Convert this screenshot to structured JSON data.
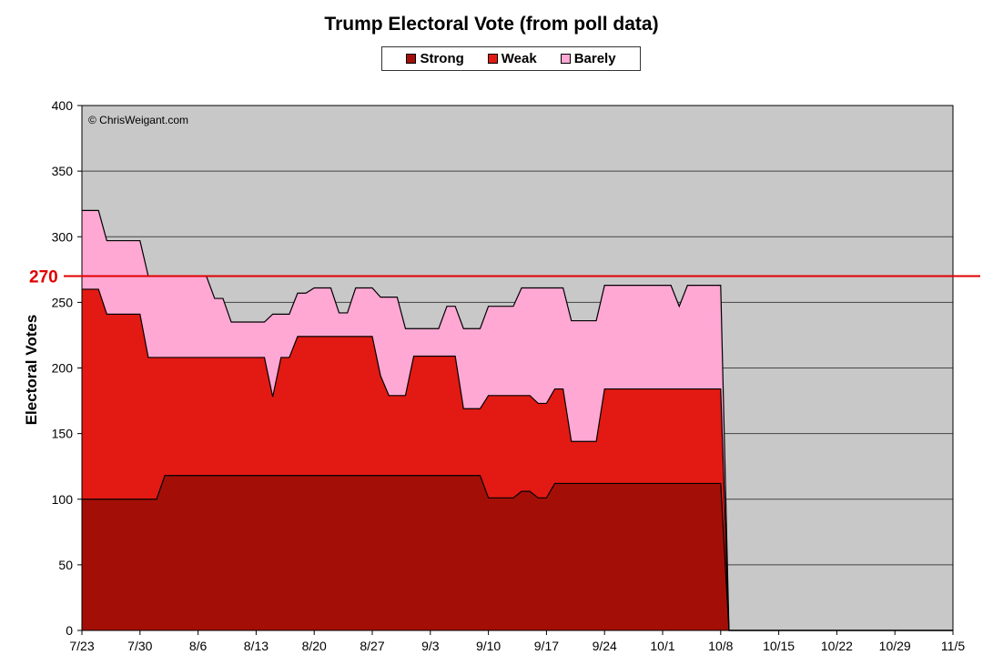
{
  "chart_data": {
    "type": "area",
    "stacked": true,
    "title": "Trump Electoral Vote (from poll data)",
    "xlabel": "",
    "ylabel": "Electoral Votes",
    "ylim": [
      0,
      400
    ],
    "yticks": [
      0,
      50,
      100,
      150,
      200,
      250,
      300,
      350,
      400
    ],
    "x_tick_labels": [
      "7/23",
      "7/30",
      "8/6",
      "8/13",
      "8/20",
      "8/27",
      "9/3",
      "9/10",
      "9/17",
      "9/24",
      "10/1",
      "10/8",
      "10/15",
      "10/22",
      "10/29",
      "11/5"
    ],
    "grid": true,
    "legend_position": "top",
    "annotations": [
      "© ChrisWeigant.com"
    ],
    "reference_line": {
      "label": "270",
      "value": 270,
      "color": "#e00000"
    },
    "x": [
      "7/23",
      "7/24",
      "7/25",
      "7/26",
      "7/27",
      "7/28",
      "7/29",
      "7/30",
      "7/31",
      "8/1",
      "8/2",
      "8/3",
      "8/4",
      "8/5",
      "8/6",
      "8/7",
      "8/8",
      "8/9",
      "8/10",
      "8/11",
      "8/12",
      "8/13",
      "8/14",
      "8/15",
      "8/16",
      "8/17",
      "8/18",
      "8/19",
      "8/20",
      "8/21",
      "8/22",
      "8/23",
      "8/24",
      "8/25",
      "8/26",
      "8/27",
      "8/28",
      "8/29",
      "8/30",
      "8/31",
      "9/1",
      "9/2",
      "9/3",
      "9/4",
      "9/5",
      "9/6",
      "9/7",
      "9/8",
      "9/9",
      "9/10",
      "9/11",
      "9/12",
      "9/13",
      "9/14",
      "9/15",
      "9/16",
      "9/17",
      "9/18",
      "9/19",
      "9/20",
      "9/21",
      "9/22",
      "9/23",
      "9/24",
      "9/25",
      "9/26",
      "9/27",
      "9/28",
      "9/29",
      "9/30",
      "10/1",
      "10/2",
      "10/3",
      "10/4",
      "10/5",
      "10/6",
      "10/7",
      "10/8",
      "10/9",
      "10/10",
      "10/11",
      "10/12",
      "10/13",
      "10/14",
      "10/15",
      "10/16",
      "10/17",
      "10/18",
      "10/19",
      "10/20",
      "10/21",
      "10/22",
      "10/23",
      "10/24",
      "10/25",
      "10/26",
      "10/27",
      "10/28",
      "10/29",
      "10/30",
      "10/31",
      "11/1",
      "11/2",
      "11/3",
      "11/4",
      "11/5"
    ],
    "series": [
      {
        "name": "Strong",
        "color": "#a30f07",
        "values": [
          100,
          100,
          100,
          100,
          100,
          100,
          100,
          100,
          100,
          100,
          118,
          118,
          118,
          118,
          118,
          118,
          118,
          118,
          118,
          118,
          118,
          118,
          118,
          118,
          118,
          118,
          118,
          118,
          118,
          118,
          118,
          118,
          118,
          118,
          118,
          118,
          118,
          118,
          118,
          118,
          118,
          118,
          118,
          118,
          118,
          118,
          118,
          118,
          118,
          101,
          101,
          101,
          101,
          106,
          106,
          101,
          101,
          112,
          112,
          112,
          112,
          112,
          112,
          112,
          112,
          112,
          112,
          112,
          112,
          112,
          112,
          112,
          112,
          112,
          112,
          112,
          112,
          112,
          0,
          0,
          0,
          0,
          0,
          0,
          0,
          0,
          0,
          0,
          0,
          0,
          0,
          0,
          0,
          0,
          0,
          0,
          0,
          0,
          0,
          0,
          0,
          0,
          0,
          0,
          0,
          0
        ]
      },
      {
        "name": "Weak",
        "color": "#e21a13",
        "values": [
          160,
          160,
          160,
          141,
          141,
          141,
          141,
          141,
          108,
          108,
          90,
          90,
          90,
          90,
          90,
          90,
          90,
          90,
          90,
          90,
          90,
          90,
          90,
          60,
          90,
          90,
          106,
          106,
          106,
          106,
          106,
          106,
          106,
          106,
          106,
          106,
          76,
          61,
          61,
          61,
          91,
          91,
          91,
          91,
          91,
          91,
          51,
          51,
          51,
          78,
          78,
          78,
          78,
          73,
          73,
          72,
          72,
          72,
          72,
          32,
          32,
          32,
          32,
          72,
          72,
          72,
          72,
          72,
          72,
          72,
          72,
          72,
          72,
          72,
          72,
          72,
          72,
          72,
          0,
          0,
          0,
          0,
          0,
          0,
          0,
          0,
          0,
          0,
          0,
          0,
          0,
          0,
          0,
          0,
          0,
          0,
          0,
          0,
          0,
          0,
          0,
          0,
          0,
          0,
          0,
          0
        ]
      },
      {
        "name": "Barely",
        "color": "#ffa8d4",
        "values": [
          60,
          60,
          60,
          56,
          56,
          56,
          56,
          56,
          62,
          62,
          62,
          62,
          62,
          62,
          62,
          62,
          45,
          45,
          27,
          27,
          27,
          27,
          27,
          63,
          33,
          33,
          33,
          33,
          37,
          37,
          37,
          18,
          18,
          37,
          37,
          37,
          60,
          75,
          75,
          51,
          21,
          21,
          21,
          21,
          38,
          38,
          61,
          61,
          61,
          68,
          68,
          68,
          68,
          82,
          82,
          88,
          88,
          77,
          77,
          92,
          92,
          92,
          92,
          79,
          79,
          79,
          79,
          79,
          79,
          79,
          79,
          79,
          63,
          79,
          79,
          79,
          79,
          79,
          0,
          0,
          0,
          0,
          0,
          0,
          0,
          0,
          0,
          0,
          0,
          0,
          0,
          0,
          0,
          0,
          0,
          0,
          0,
          0,
          0,
          0,
          0,
          0,
          0,
          0,
          0,
          0
        ]
      }
    ]
  }
}
